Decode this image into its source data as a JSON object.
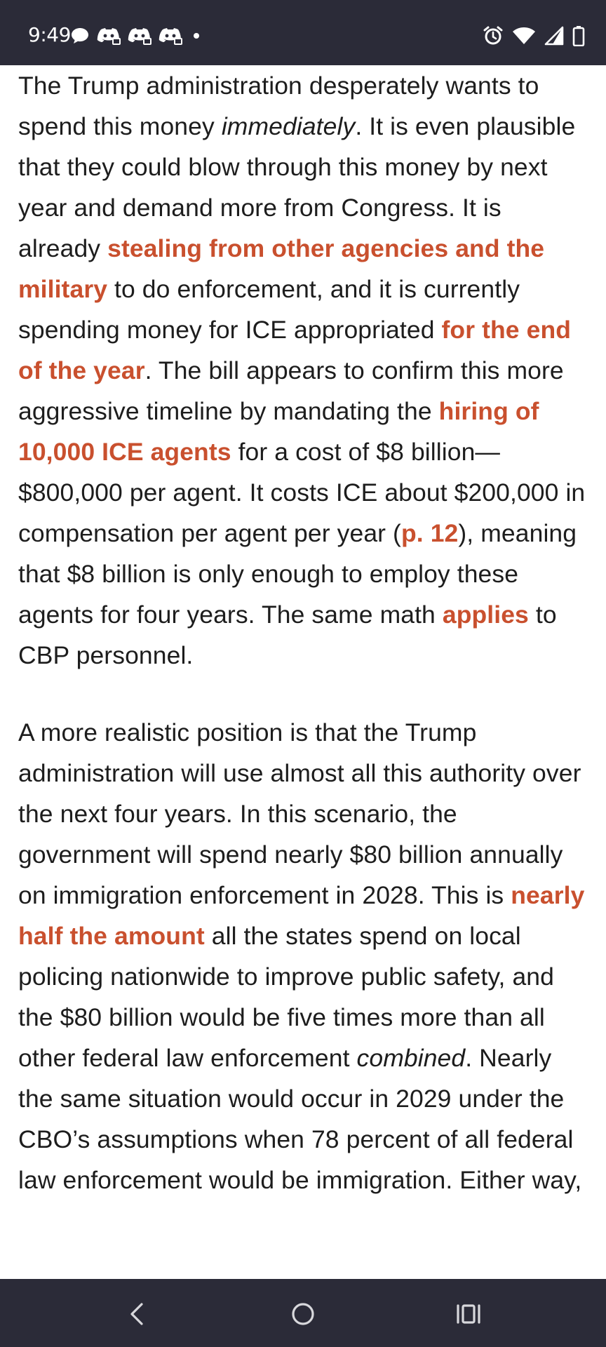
{
  "status_bar": {
    "time": "9:49",
    "left_icons": [
      "chat-bubble-icon",
      "discord-icon",
      "discord-icon",
      "discord-icon",
      "dot-icon"
    ],
    "right_icons": [
      "alarm-icon",
      "wifi-icon",
      "signal-icon",
      "battery-icon"
    ]
  },
  "article": {
    "p1": {
      "t1": "The Trump administration desperately wants to spend this money ",
      "em1": "immediately",
      "t2": ". It is even plausible that they could blow through this money by next year and demand more from Congress. It is already ",
      "link1": "stealing from other agencies and the military",
      "t3": " to do enforcement, and it is currently spending money for ICE appropriated ",
      "link2": "for the end of the year",
      "t4": ". The bill appears to confirm this more aggressive timeline by mandating the ",
      "link3": "hiring of 10,000 ICE agents",
      "t5": " for a cost of $8 billion—$800,000 per agent. It costs ICE about $200,000 in compensation per agent per year (",
      "link4": "p. 12",
      "t6": "), meaning that $8 billion is only enough to employ these agents for four years. The same math ",
      "link5": "applies",
      "t7": " to CBP personnel."
    },
    "p2": {
      "t1": "A more realistic position is that the Trump administration will use almost all this authority over the next four years. In this scenario, the government will spend nearly $80 billion annually on immigration enforcement in 2028. This is ",
      "link1": "nearly half the amount",
      "t2": " all the states spend on local policing nationwide to improve public safety, and the $80 billion would be five times more than all other federal law enforcement ",
      "em1": "combined",
      "t3": ". Nearly the same situation would occur in 2029 under the CBO’s assumptions when 78 percent of all federal law enforcement would be immigration. Either way,"
    }
  },
  "nav_bar": {
    "buttons": [
      "back-icon",
      "home-icon",
      "recents-icon"
    ]
  },
  "colors": {
    "bar_background": "#2b2b38",
    "link": "#c9502e",
    "text": "#1d1d1d"
  }
}
